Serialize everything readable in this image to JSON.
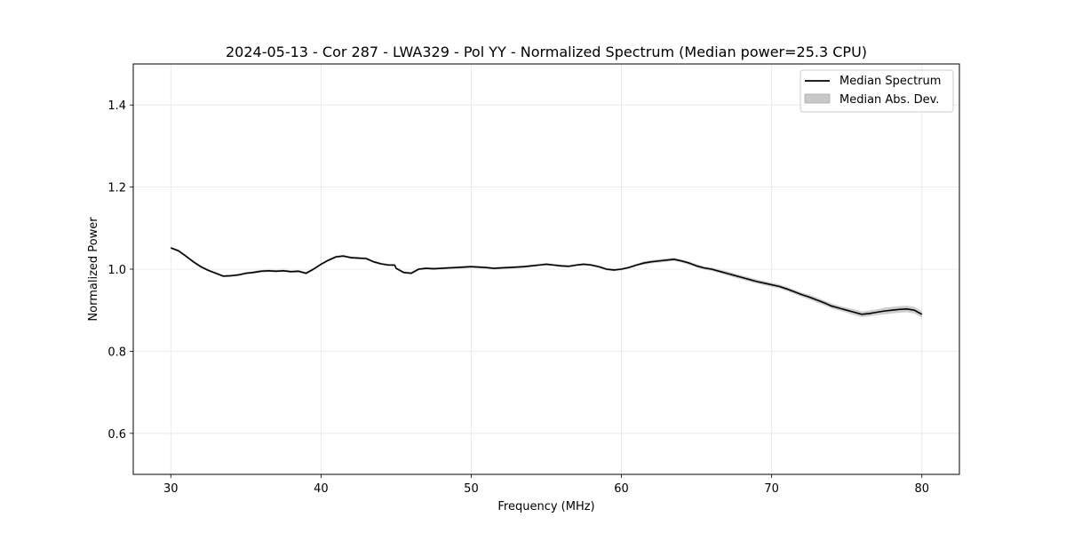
{
  "chart_data": {
    "type": "line",
    "title": "2024-05-13 - Cor 287 - LWA329 - Pol YY - Normalized Spectrum (Median power=25.3 CPU)",
    "xlabel": "Frequency (MHz)",
    "ylabel": "Normalized Power",
    "xlim": [
      27.5,
      82.5
    ],
    "ylim": [
      0.5,
      1.5
    ],
    "xticks": [
      30,
      40,
      50,
      60,
      70,
      80
    ],
    "yticks": [
      0.6,
      0.8,
      1.0,
      1.2,
      1.4
    ],
    "xtick_labels": [
      "30",
      "40",
      "50",
      "60",
      "70",
      "80"
    ],
    "ytick_labels": [
      "0.6",
      "0.8",
      "1.0",
      "1.2",
      "1.4"
    ],
    "grid": true,
    "legend_position": "top-right",
    "legend": [
      {
        "label": "Median Spectrum",
        "kind": "line",
        "color": "#000000"
      },
      {
        "label": "Median Abs. Dev.",
        "kind": "band",
        "color": "#c8c8c8"
      }
    ],
    "series": [
      {
        "name": "Median Spectrum",
        "color": "#000000",
        "band_color": "#c8c8c8",
        "x": [
          30.0,
          30.5,
          31.0,
          31.5,
          32.0,
          32.5,
          33.0,
          33.5,
          34.0,
          34.5,
          35.0,
          35.5,
          36.0,
          36.5,
          37.0,
          37.5,
          38.0,
          38.5,
          39.0,
          39.5,
          40.0,
          40.5,
          41.0,
          41.5,
          42.0,
          42.5,
          43.0,
          43.5,
          44.0,
          44.5,
          44.9,
          45.0,
          45.5,
          46.0,
          46.5,
          47.0,
          47.5,
          48.0,
          48.5,
          49.0,
          49.5,
          50.0,
          50.5,
          51.0,
          51.5,
          52.0,
          52.5,
          53.0,
          53.5,
          54.0,
          54.5,
          55.0,
          55.5,
          56.0,
          56.5,
          57.0,
          57.5,
          58.0,
          58.5,
          59.0,
          59.5,
          60.0,
          60.5,
          61.0,
          61.5,
          62.0,
          62.5,
          63.0,
          63.5,
          64.0,
          64.5,
          65.0,
          65.5,
          66.0,
          66.5,
          67.0,
          67.5,
          68.0,
          68.5,
          69.0,
          69.5,
          70.0,
          70.5,
          71.0,
          71.5,
          72.0,
          72.5,
          73.0,
          73.5,
          74.0,
          74.5,
          75.0,
          75.5,
          76.0,
          76.5,
          77.0,
          77.5,
          78.0,
          78.5,
          79.0,
          79.5,
          80.0
        ],
        "y": [
          1.052,
          1.045,
          1.032,
          1.018,
          1.006,
          0.997,
          0.99,
          0.983,
          0.984,
          0.986,
          0.99,
          0.992,
          0.995,
          0.996,
          0.995,
          0.996,
          0.994,
          0.995,
          0.99,
          1.0,
          1.012,
          1.022,
          1.03,
          1.032,
          1.028,
          1.027,
          1.026,
          1.018,
          1.013,
          1.01,
          1.01,
          1.002,
          0.992,
          0.99,
          1.0,
          1.002,
          1.001,
          1.002,
          1.003,
          1.004,
          1.005,
          1.006,
          1.005,
          1.004,
          1.002,
          1.003,
          1.004,
          1.005,
          1.006,
          1.008,
          1.01,
          1.012,
          1.01,
          1.008,
          1.007,
          1.01,
          1.012,
          1.01,
          1.006,
          1.0,
          0.998,
          1.0,
          1.004,
          1.01,
          1.015,
          1.018,
          1.02,
          1.022,
          1.024,
          1.02,
          1.015,
          1.008,
          1.003,
          1.0,
          0.995,
          0.99,
          0.985,
          0.98,
          0.975,
          0.97,
          0.966,
          0.962,
          0.958,
          0.952,
          0.945,
          0.938,
          0.932,
          0.925,
          0.918,
          0.91,
          0.905,
          0.9,
          0.895,
          0.89,
          0.892,
          0.895,
          0.898,
          0.9,
          0.902,
          0.903,
          0.9,
          0.89
        ],
        "mad": [
          0.003,
          0.003,
          0.003,
          0.003,
          0.003,
          0.003,
          0.003,
          0.003,
          0.003,
          0.003,
          0.003,
          0.003,
          0.003,
          0.003,
          0.003,
          0.003,
          0.003,
          0.003,
          0.003,
          0.003,
          0.003,
          0.003,
          0.003,
          0.003,
          0.003,
          0.003,
          0.003,
          0.003,
          0.003,
          0.003,
          0.003,
          0.003,
          0.003,
          0.003,
          0.003,
          0.003,
          0.003,
          0.003,
          0.003,
          0.003,
          0.003,
          0.003,
          0.003,
          0.003,
          0.003,
          0.003,
          0.003,
          0.003,
          0.003,
          0.003,
          0.003,
          0.003,
          0.003,
          0.003,
          0.003,
          0.003,
          0.003,
          0.003,
          0.003,
          0.003,
          0.003,
          0.003,
          0.003,
          0.003,
          0.004,
          0.004,
          0.004,
          0.004,
          0.004,
          0.004,
          0.004,
          0.004,
          0.004,
          0.004,
          0.004,
          0.005,
          0.005,
          0.005,
          0.005,
          0.005,
          0.005,
          0.005,
          0.005,
          0.005,
          0.005,
          0.005,
          0.006,
          0.006,
          0.006,
          0.006,
          0.006,
          0.006,
          0.007,
          0.007,
          0.007,
          0.007,
          0.008,
          0.008,
          0.008,
          0.008,
          0.008,
          0.008
        ]
      }
    ]
  }
}
